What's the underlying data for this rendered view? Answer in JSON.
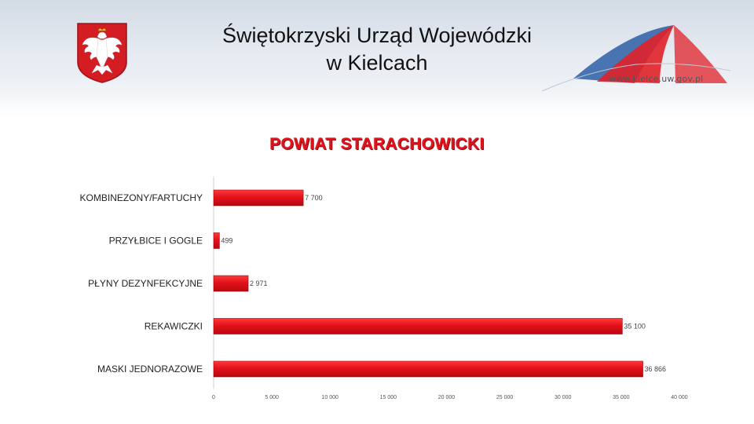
{
  "header": {
    "title_line1": "Świętokrzyski Urząd Wojewódzki",
    "title_line2": "w Kielcach",
    "logo_text": "www.kielce.uw.gov.pl",
    "emblem_icon": "polish-eagle-emblem-icon"
  },
  "colors": {
    "bar": "#e3111b",
    "bar_dark": "#b8080f",
    "title": "#e2111b",
    "emblem_red": "#d41c23",
    "logo_blue": "#2b5fa6",
    "logo_red": "#e02128"
  },
  "chart_data": {
    "type": "bar",
    "orientation": "horizontal",
    "title": "POWIAT STARACHOWICKI",
    "categories": [
      "KOMBINEZONY/FARTUCHY",
      "PRZYŁBICE I GOGLE",
      "PŁYNY DEZYNFEKCYJNE",
      "REKAWICZKI",
      "MASKI JEDNORAZOWE"
    ],
    "values": [
      7700,
      499,
      2971,
      35100,
      36866
    ],
    "value_labels": [
      "7 700",
      "499",
      "2 971",
      "35 100",
      "36 866"
    ],
    "xlim": [
      0,
      40000
    ],
    "ticks": [
      0,
      5000,
      10000,
      15000,
      20000,
      25000,
      30000,
      35000,
      40000
    ],
    "tick_labels": [
      "0",
      "5 000",
      "10 000",
      "15 000",
      "20 000",
      "25 000",
      "30 000",
      "35 000",
      "40 000"
    ],
    "grid": false,
    "legend": "none"
  }
}
